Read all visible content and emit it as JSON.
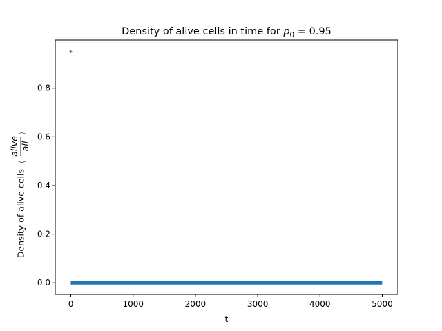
{
  "chart_data": {
    "type": "scatter",
    "title_main": "Density of alive cells in time for ",
    "title_var": "p",
    "title_sub": "0",
    "title_eq": " = 0.95",
    "xlabel": "t",
    "ylabel_main": "Density of alive cells",
    "ylabel_frac_num": "alive",
    "ylabel_frac_den": "all",
    "xlim": [
      -250,
      5250
    ],
    "ylim": [
      -0.0475,
      0.9975
    ],
    "xticks": [
      0,
      1000,
      2000,
      3000,
      4000,
      5000
    ],
    "xtick_labels": [
      "0",
      "1000",
      "2000",
      "3000",
      "4000",
      "5000"
    ],
    "yticks": [
      0.0,
      0.2,
      0.4,
      0.6,
      0.8
    ],
    "ytick_labels": [
      "0.0",
      "0.2",
      "0.4",
      "0.6",
      "0.8"
    ],
    "series_color": "#1f77b4",
    "initial_point": {
      "x": 0,
      "y": 0.95
    },
    "steady_series": {
      "x_start": 10,
      "x_end": 4999,
      "y": 0.0
    },
    "grid": false,
    "legend": "none"
  }
}
